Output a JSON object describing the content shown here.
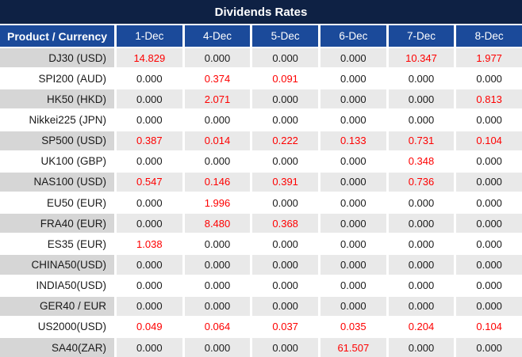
{
  "title": "Dividends Rates",
  "table": {
    "product_header": "Product / Currency",
    "date_headers": [
      "1-Dec",
      "4-Dec",
      "5-Dec",
      "6-Dec",
      "7-Dec",
      "8-Dec"
    ],
    "rows": [
      {
        "product": "DJ30 (USD)",
        "values": [
          "14.829",
          "0.000",
          "0.000",
          "0.000",
          "10.347",
          "1.977"
        ]
      },
      {
        "product": "SPI200 (AUD)",
        "values": [
          "0.000",
          "0.374",
          "0.091",
          "0.000",
          "0.000",
          "0.000"
        ]
      },
      {
        "product": "HK50 (HKD)",
        "values": [
          "0.000",
          "2.071",
          "0.000",
          "0.000",
          "0.000",
          "0.813"
        ]
      },
      {
        "product": "Nikkei225 (JPN)",
        "values": [
          "0.000",
          "0.000",
          "0.000",
          "0.000",
          "0.000",
          "0.000"
        ]
      },
      {
        "product": "SP500 (USD)",
        "values": [
          "0.387",
          "0.014",
          "0.222",
          "0.133",
          "0.731",
          "0.104"
        ]
      },
      {
        "product": "UK100 (GBP)",
        "values": [
          "0.000",
          "0.000",
          "0.000",
          "0.000",
          "0.348",
          "0.000"
        ]
      },
      {
        "product": "NAS100 (USD)",
        "values": [
          "0.547",
          "0.146",
          "0.391",
          "0.000",
          "0.736",
          "0.000"
        ]
      },
      {
        "product": "EU50 (EUR)",
        "values": [
          "0.000",
          "1.996",
          "0.000",
          "0.000",
          "0.000",
          "0.000"
        ]
      },
      {
        "product": "FRA40 (EUR)",
        "values": [
          "0.000",
          "8.480",
          "0.368",
          "0.000",
          "0.000",
          "0.000"
        ]
      },
      {
        "product": "ES35 (EUR)",
        "values": [
          "1.038",
          "0.000",
          "0.000",
          "0.000",
          "0.000",
          "0.000"
        ]
      },
      {
        "product": "CHINA50(USD)",
        "values": [
          "0.000",
          "0.000",
          "0.000",
          "0.000",
          "0.000",
          "0.000"
        ]
      },
      {
        "product": "INDIA50(USD)",
        "values": [
          "0.000",
          "0.000",
          "0.000",
          "0.000",
          "0.000",
          "0.000"
        ]
      },
      {
        "product": "GER40 / EUR",
        "values": [
          "0.000",
          "0.000",
          "0.000",
          "0.000",
          "0.000",
          "0.000"
        ]
      },
      {
        "product": "US2000(USD)",
        "values": [
          "0.049",
          "0.064",
          "0.037",
          "0.035",
          "0.204",
          "0.104"
        ]
      },
      {
        "product": "SA40(ZAR)",
        "values": [
          "0.000",
          "0.000",
          "0.000",
          "61.507",
          "0.000",
          "0.000"
        ]
      }
    ]
  },
  "colors": {
    "title_bg": "#0e2144",
    "header_bg": "#1b4a9a",
    "alt_product_bg": "#d6d6d6",
    "alt_value_bg": "#e9e9e9",
    "positive_color": "#fe0000",
    "text_color": "#1a1a1a"
  },
  "chart_data": {
    "type": "table",
    "title": "Dividends Rates",
    "columns": [
      "Product / Currency",
      "1-Dec",
      "4-Dec",
      "5-Dec",
      "6-Dec",
      "7-Dec",
      "8-Dec"
    ],
    "rows": [
      [
        "DJ30 (USD)",
        14.829,
        0.0,
        0.0,
        0.0,
        10.347,
        1.977
      ],
      [
        "SPI200 (AUD)",
        0.0,
        0.374,
        0.091,
        0.0,
        0.0,
        0.0
      ],
      [
        "HK50 (HKD)",
        0.0,
        2.071,
        0.0,
        0.0,
        0.0,
        0.813
      ],
      [
        "Nikkei225 (JPN)",
        0.0,
        0.0,
        0.0,
        0.0,
        0.0,
        0.0
      ],
      [
        "SP500 (USD)",
        0.387,
        0.014,
        0.222,
        0.133,
        0.731,
        0.104
      ],
      [
        "UK100 (GBP)",
        0.0,
        0.0,
        0.0,
        0.0,
        0.348,
        0.0
      ],
      [
        "NAS100 (USD)",
        0.547,
        0.146,
        0.391,
        0.0,
        0.736,
        0.0
      ],
      [
        "EU50 (EUR)",
        0.0,
        1.996,
        0.0,
        0.0,
        0.0,
        0.0
      ],
      [
        "FRA40 (EUR)",
        0.0,
        8.48,
        0.368,
        0.0,
        0.0,
        0.0
      ],
      [
        "ES35 (EUR)",
        1.038,
        0.0,
        0.0,
        0.0,
        0.0,
        0.0
      ],
      [
        "CHINA50(USD)",
        0.0,
        0.0,
        0.0,
        0.0,
        0.0,
        0.0
      ],
      [
        "INDIA50(USD)",
        0.0,
        0.0,
        0.0,
        0.0,
        0.0,
        0.0
      ],
      [
        "GER40 / EUR",
        0.0,
        0.0,
        0.0,
        0.0,
        0.0,
        0.0
      ],
      [
        "US2000(USD)",
        0.049,
        0.064,
        0.037,
        0.035,
        0.204,
        0.104
      ],
      [
        "SA40(ZAR)",
        0.0,
        0.0,
        0.0,
        61.507,
        0.0,
        0.0
      ]
    ],
    "notes": "Values greater than zero are rendered in red; zero values in near-black. Alternating rows shaded gray starting with first data row."
  }
}
